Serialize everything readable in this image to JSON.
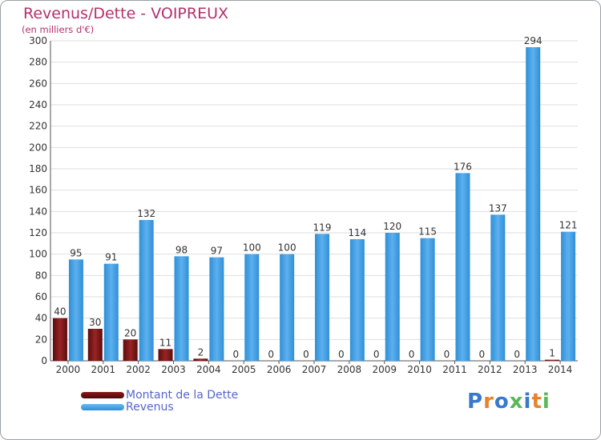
{
  "title": "Revenus/Dette - VOIPREUX",
  "subtitle": "(en milliers d'€)",
  "legend": {
    "items": [
      {
        "label": "Montant de la Dette",
        "color": "#7a1313"
      },
      {
        "label": "Revenus",
        "color": "#4ea3e6"
      }
    ]
  },
  "logo": {
    "text": "Proxiti",
    "letters": [
      "P",
      "r",
      "o",
      "x",
      "i",
      "t",
      "i"
    ],
    "colors": [
      "#3a79c9",
      "#e8822d",
      "#3a79c9",
      "#5ab85a",
      "#3a79c9",
      "#e8822d",
      "#5ab85a"
    ]
  },
  "chart_data": {
    "type": "bar",
    "categories": [
      "2000",
      "2001",
      "2002",
      "2003",
      "2004",
      "2005",
      "2006",
      "2007",
      "2008",
      "2009",
      "2010",
      "2011",
      "2012",
      "2013",
      "2014"
    ],
    "series": [
      {
        "name": "Montant de la Dette",
        "color": "#7a1313",
        "values": [
          40,
          30,
          20,
          11,
          2,
          0,
          0,
          0,
          0,
          0,
          0,
          0,
          0,
          0,
          1
        ]
      },
      {
        "name": "Revenus",
        "color": "#4ea3e6",
        "values": [
          95,
          91,
          132,
          98,
          97,
          100,
          100,
          119,
          114,
          120,
          115,
          176,
          137,
          294,
          121
        ]
      }
    ],
    "ylim": [
      0,
      300
    ],
    "yticks": [
      0,
      20,
      40,
      60,
      80,
      100,
      120,
      140,
      160,
      180,
      200,
      220,
      240,
      260,
      280,
      300
    ],
    "grid": true,
    "legend_position": "bottom-left"
  }
}
